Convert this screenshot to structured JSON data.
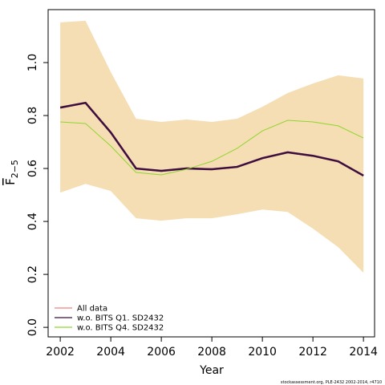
{
  "chart_data": {
    "type": "line",
    "xlabel": "Year",
    "ylabel": "F",
    "ylabel_sub": "2−5",
    "footnote": "stockassessment.org, PLE-2432 2002-2014, r4710",
    "x": [
      2002,
      2003,
      2004,
      2005,
      2006,
      2007,
      2008,
      2009,
      2010,
      2011,
      2012,
      2013,
      2014
    ],
    "band": {
      "color": "#f5deb3",
      "upper": [
        1.152,
        1.158,
        0.964,
        0.788,
        0.776,
        0.785,
        0.776,
        0.788,
        0.833,
        0.885,
        0.921,
        0.952,
        0.94
      ],
      "lower": [
        0.509,
        0.542,
        0.515,
        0.412,
        0.403,
        0.412,
        0.412,
        0.427,
        0.445,
        0.436,
        0.373,
        0.303,
        0.206
      ]
    },
    "series": [
      {
        "name": "All data",
        "color": "#f08080",
        "values": [
          0.83,
          0.848,
          0.736,
          0.6,
          0.591,
          0.6,
          0.597,
          0.606,
          0.639,
          0.661,
          0.648,
          0.627,
          0.573
        ]
      },
      {
        "name": "w.o. BITS Q1. SD2432",
        "color": "#3b0f3f",
        "values": [
          0.83,
          0.848,
          0.736,
          0.6,
          0.591,
          0.6,
          0.597,
          0.606,
          0.639,
          0.661,
          0.648,
          0.627,
          0.573
        ]
      },
      {
        "name": "w.o. BITS Q4. SD2432",
        "color": "#8fd62f",
        "values": [
          0.776,
          0.77,
          0.685,
          0.585,
          0.576,
          0.597,
          0.627,
          0.676,
          0.742,
          0.782,
          0.776,
          0.761,
          0.715
        ]
      }
    ],
    "xlim": [
      2001.52,
      2014.44
    ],
    "ylim": [
      -0.036,
      1.2
    ],
    "xticks": [
      2002,
      2004,
      2006,
      2008,
      2010,
      2012,
      2014
    ],
    "yticks": [
      {
        "value": 0,
        "label": "0.0"
      },
      {
        "value": 0.2,
        "label": "0.2"
      },
      {
        "value": 0.4,
        "label": "0.4"
      },
      {
        "value": 0.6,
        "label": "0.6"
      },
      {
        "value": 0.8,
        "label": "0.8"
      },
      {
        "value": 1,
        "label": "1.0"
      }
    ],
    "legend": "bottom-left"
  }
}
